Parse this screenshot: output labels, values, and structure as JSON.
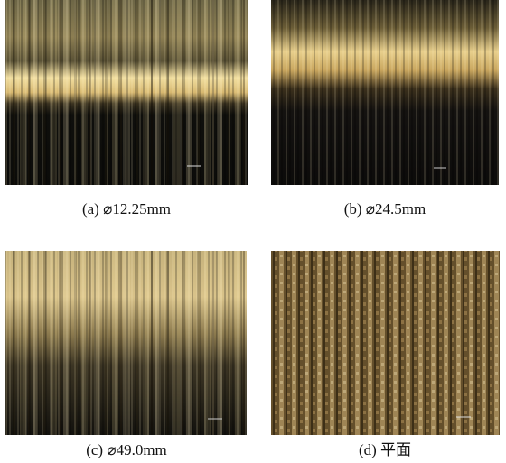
{
  "panels": [
    {
      "caption": "(a) ⌀12.25mm"
    },
    {
      "caption": "(b) ⌀24.5mm"
    },
    {
      "caption": "(c) ⌀49.0mm"
    },
    {
      "caption": "(d) 平面"
    }
  ]
}
